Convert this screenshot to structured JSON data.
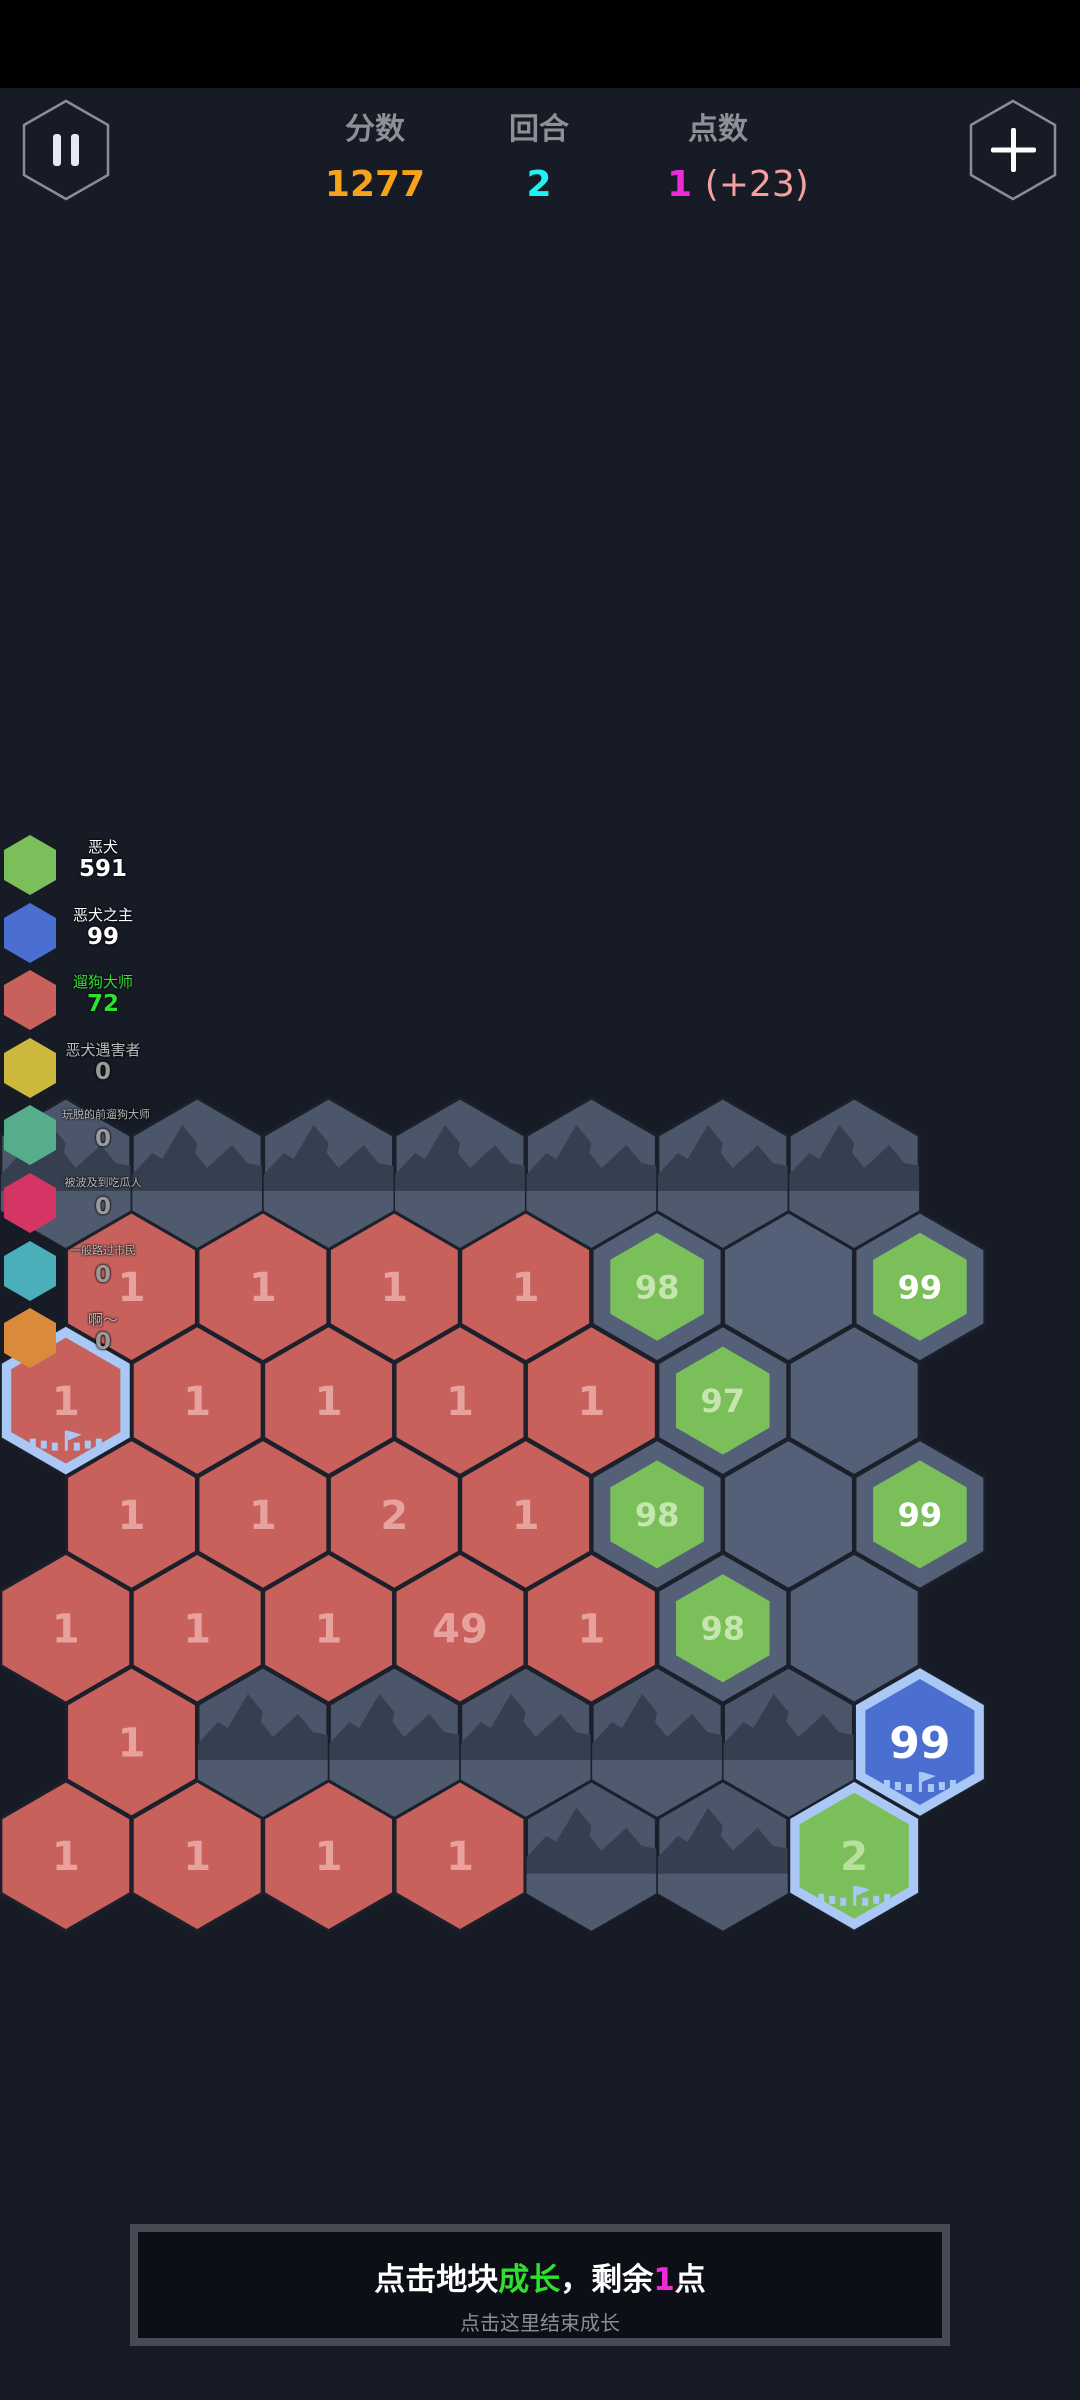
{
  "header": {
    "pause_icon": "pause-icon",
    "add_icon": "plus-icon",
    "score_label": "分数",
    "score_value": "1277",
    "round_label": "回合",
    "round_value": "2",
    "points_label": "点数",
    "points_value": "1",
    "points_bonus": "(+23)",
    "colors": {
      "score": "#f7a21b",
      "round": "#1ef2f2",
      "points": "#ee2bd9",
      "bonus": "#f4a0a0"
    }
  },
  "legend": [
    {
      "name": "恶犬",
      "value": "591",
      "color": "#7bbf5b",
      "text_color": "#ffffff"
    },
    {
      "name": "恶犬之主",
      "value": "99",
      "color": "#4a6fd0",
      "text_color": "#ffffff"
    },
    {
      "name": "遛狗大师",
      "value": "72",
      "color": "#c8605c",
      "text_color": "#2fe02f"
    },
    {
      "name": "恶犬遇害者",
      "value": "0",
      "color": "#cbb83c",
      "text_color": "#9a9a9a"
    },
    {
      "name": "玩脱的前遛狗大师",
      "value": "0",
      "color": "#56ad8c",
      "text_color": "#9a9a9a"
    },
    {
      "name": "被波及到吃瓜人",
      "value": "0",
      "color": "#d43565",
      "text_color": "#9a9a9a"
    },
    {
      "name": "一般路过市民",
      "value": "0",
      "color": "#4aaebb",
      "text_color": "#9a9a9a"
    },
    {
      "name": "啊～",
      "value": "0",
      "color": "#d98a3a",
      "text_color": "#9a9a9a"
    }
  ],
  "board": {
    "colors": {
      "red": "#c8605c",
      "green": "#7bbf5b",
      "blue": "#4a6fd0",
      "gray": "#536078",
      "mountain": "#4b566b",
      "capital_border": "#a9c8f5"
    },
    "rows": [
      [
        {
          "t": "m"
        },
        {
          "t": "m"
        },
        {
          "t": "m"
        },
        {
          "t": "m"
        },
        {
          "t": "m"
        },
        {
          "t": "m"
        },
        {
          "t": "m"
        }
      ],
      [
        {
          "t": "red",
          "v": "1"
        },
        {
          "t": "red",
          "v": "1"
        },
        {
          "t": "red",
          "v": "1"
        },
        {
          "t": "red",
          "v": "1"
        },
        {
          "t": "gin",
          "v": "98"
        },
        {
          "t": "empty"
        },
        {
          "t": "gin",
          "v": "99",
          "bright": true
        }
      ],
      [
        {
          "t": "cap",
          "c": "red",
          "v": "1"
        },
        {
          "t": "red",
          "v": "1"
        },
        {
          "t": "red",
          "v": "1"
        },
        {
          "t": "red",
          "v": "1"
        },
        {
          "t": "red",
          "v": "1"
        },
        {
          "t": "gin",
          "v": "97"
        },
        {
          "t": "empty"
        }
      ],
      [
        {
          "t": "red",
          "v": "1"
        },
        {
          "t": "red",
          "v": "1"
        },
        {
          "t": "red",
          "v": "2"
        },
        {
          "t": "red",
          "v": "1"
        },
        {
          "t": "gin",
          "v": "98"
        },
        {
          "t": "empty"
        },
        {
          "t": "gin",
          "v": "99",
          "bright": true
        }
      ],
      [
        {
          "t": "red",
          "v": "1"
        },
        {
          "t": "red",
          "v": "1"
        },
        {
          "t": "red",
          "v": "1"
        },
        {
          "t": "red",
          "v": "49"
        },
        {
          "t": "red",
          "v": "1"
        },
        {
          "t": "gin",
          "v": "98"
        },
        {
          "t": "empty"
        }
      ],
      [
        {
          "t": "red",
          "v": "1"
        },
        {
          "t": "m"
        },
        {
          "t": "m"
        },
        {
          "t": "m"
        },
        {
          "t": "m"
        },
        {
          "t": "m"
        },
        {
          "t": "cap",
          "c": "blue",
          "v": "99",
          "bright": true
        }
      ],
      [
        {
          "t": "red",
          "v": "1"
        },
        {
          "t": "red",
          "v": "1"
        },
        {
          "t": "red",
          "v": "1"
        },
        {
          "t": "red",
          "v": "1"
        },
        {
          "t": "m"
        },
        {
          "t": "m"
        },
        {
          "t": "cap",
          "c": "green",
          "v": "2"
        }
      ]
    ]
  },
  "banner": {
    "part1": "点击地块",
    "part2": "成长",
    "part3": "，剩余",
    "part4": "1",
    "part5": "点",
    "sub": "点击这里结束成长"
  }
}
